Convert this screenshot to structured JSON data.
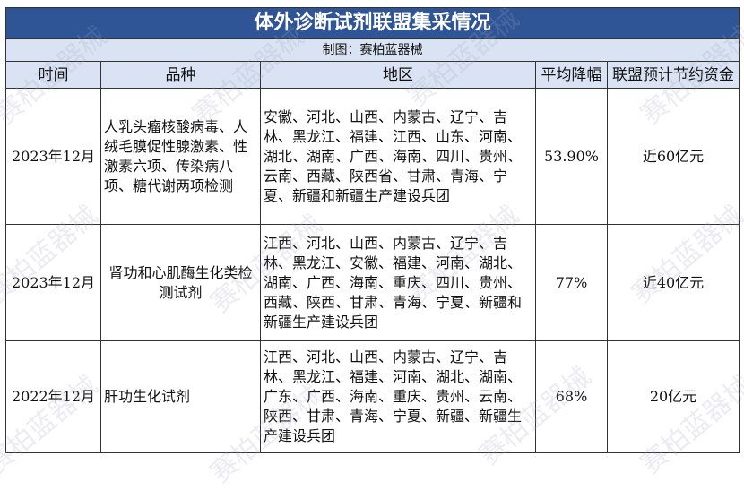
{
  "title": "体外诊断试剂联盟集采情况",
  "subtitle": "制图：赛柏蓝器械",
  "watermark": "赛柏蓝器械",
  "colors": {
    "title_bg": "#2f5597",
    "header_bg": "#dae3f3"
  },
  "columns": [
    "时间",
    "品种",
    "地区",
    "平均降幅",
    "联盟预计节约资金"
  ],
  "rows": [
    {
      "time": "2023年12月",
      "product": "人乳头瘤核酸病毒、人绒毛膜促性腺激素、性激素六项、传染病八项、糖代谢两项检测",
      "region": "安徽、河北、山西、内蒙古、辽宁、吉林、黑龙江、福建、江西、山东、河南、湖北、湖南、广西、海南、四川、贵州、云南、西藏、陕西省、甘肃、青海、宁夏、新疆和新疆生产建设兵团",
      "reduction": "53.90%",
      "savings": "近60亿元"
    },
    {
      "time": "2023年12月",
      "product": "肾功和心肌酶生化类检测试剂",
      "region": "江西、河北、山西、内蒙古、辽宁、吉林、黑龙江、安徽、福建、河南、湖北、湖南、广西、海南、重庆、四川、贵州、西藏、陕西、甘肃、青海、宁夏、新疆和新疆生产建设兵团",
      "reduction": "77%",
      "savings": "近40亿元"
    },
    {
      "time": "2022年12月",
      "product": "肝功生化试剂",
      "region": "江西、河北、山西、内蒙古、辽宁、吉林、黑龙江、福建、河南、湖北、湖南、广东、广西、海南、重庆、贵州、云南、陕西、甘肃、青海、宁夏、新疆、新疆生产建设兵团",
      "reduction": "68%",
      "savings": "20亿元"
    }
  ]
}
